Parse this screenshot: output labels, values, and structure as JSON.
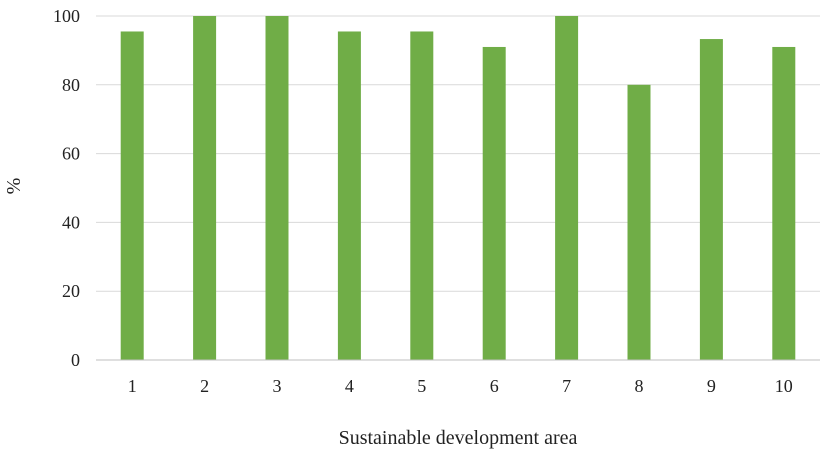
{
  "chart_data": {
    "type": "bar",
    "title": "",
    "xlabel": "Sustainable development area",
    "ylabel": "%",
    "categories": [
      "1",
      "2",
      "3",
      "4",
      "5",
      "6",
      "7",
      "8",
      "9",
      "10"
    ],
    "values": [
      95.5,
      100,
      100,
      95.5,
      95.5,
      91,
      100,
      80,
      93.3,
      91
    ],
    "ylim": [
      0,
      100
    ],
    "yticks": [
      "0",
      "20",
      "40",
      "60",
      "80",
      "100"
    ],
    "grid": true,
    "legend": "none",
    "colors": {
      "bar": "#70ad47",
      "grid": "#d9d9d9",
      "axis": "#bfbfbf"
    }
  }
}
